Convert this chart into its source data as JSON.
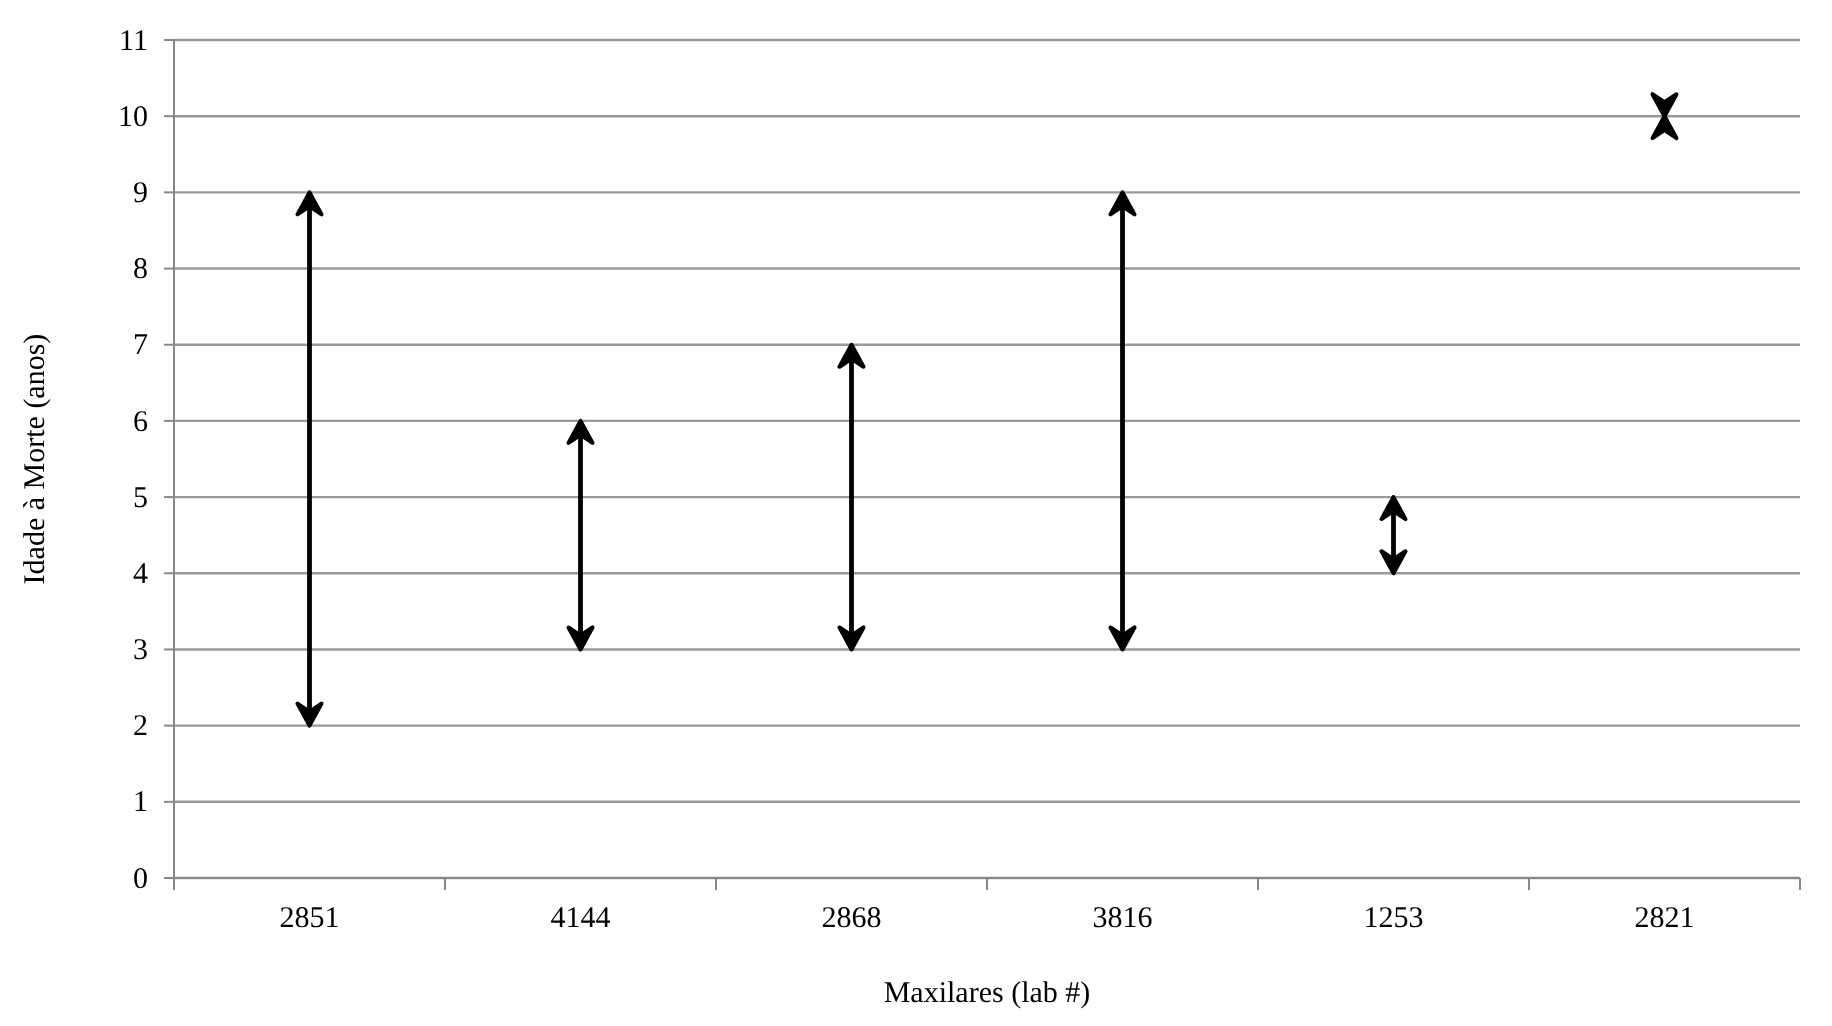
{
  "chart_data": {
    "type": "bar",
    "xlabel": "Maxilares (lab #)",
    "ylabel": "Idade à Morte (anos)",
    "categories": [
      "2851",
      "4144",
      "2868",
      "3816",
      "1253",
      "2821"
    ],
    "base": [
      2,
      3,
      3,
      3,
      4,
      10
    ],
    "values": [
      7,
      3,
      4,
      6,
      1,
      0
    ],
    "color": "#000000",
    "ylim": [
      0,
      11
    ],
    "yticks": [
      0,
      1,
      2,
      3,
      4,
      5,
      6,
      7,
      8,
      9,
      10,
      11
    ],
    "grid": "y"
  }
}
